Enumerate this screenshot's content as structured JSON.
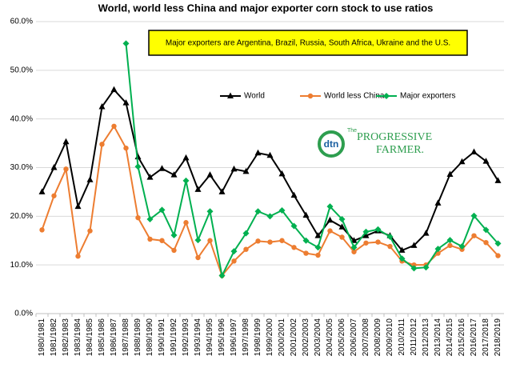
{
  "chart_data": {
    "type": "line",
    "title": "World, world less China and major exporter corn stock to use ratios",
    "annotation": "Major exporters are Argentina, Brazil, Russia, South Africa, Ukraine and the U.S.",
    "logo": {
      "mark": "dtn",
      "prefix": "The",
      "name": "PROGRESSIVE",
      "name2": "FARMER."
    },
    "categories": [
      "1980/1981",
      "1981/1982",
      "1982/1983",
      "1983/1984",
      "1984/1985",
      "1985/1986",
      "1986/1987",
      "1987/1988",
      "1988/1989",
      "1989/1990",
      "1990/1991",
      "1991/1992",
      "1992/1993",
      "1993/1994",
      "1994/1995",
      "1995/1996",
      "1996/1997",
      "1997/1998",
      "1998/1999",
      "1999/2000",
      "2000/2001",
      "2001/2002",
      "2002/2003",
      "2003/2004",
      "2004/2005",
      "2005/2006",
      "2006/2007",
      "2007/2008",
      "2008/2009",
      "2009/2010",
      "2010/2011",
      "2011/2012",
      "2012/2013",
      "2013/2014",
      "2014/2015",
      "2015/2016",
      "2016/2017",
      "2017/2018",
      "2018/2019"
    ],
    "series": [
      {
        "name": "World",
        "color": "#000000",
        "marker": "triangle",
        "values": [
          25,
          30,
          35.3,
          22,
          27.5,
          42.5,
          46,
          43.3,
          32.2,
          28,
          29.8,
          28.5,
          32,
          25.5,
          28.5,
          25,
          29.7,
          29.2,
          33,
          32.5,
          28.7,
          24.3,
          20.2,
          16,
          19.2,
          17.8,
          15,
          16,
          17,
          16,
          13,
          14,
          16.5,
          22.7,
          28.6,
          31.2,
          33.2,
          31.3,
          27.3
        ]
      },
      {
        "name": "World less China",
        "color": "#ed7d31",
        "marker": "circle",
        "values": [
          17.2,
          24.2,
          29.7,
          11.8,
          17,
          34.8,
          38.5,
          34,
          19.7,
          15.3,
          15,
          13,
          18.7,
          11.5,
          15,
          7.8,
          10.8,
          13.2,
          14.9,
          14.7,
          15,
          13.6,
          12.4,
          12,
          17,
          15.7,
          12.7,
          14.5,
          14.7,
          13.8,
          10.8,
          10,
          10,
          12.4,
          14,
          13.2,
          16,
          14.6,
          11.9
        ]
      },
      {
        "name": "Major exporters",
        "color": "#00b050",
        "marker": "diamond",
        "values": [
          null,
          null,
          null,
          null,
          null,
          null,
          null,
          55.5,
          30.2,
          19.4,
          21.3,
          16.1,
          27.3,
          15.1,
          21,
          7.8,
          12.8,
          16.5,
          21,
          20,
          21.2,
          18,
          15,
          13.6,
          22,
          19.4,
          13.6,
          16.8,
          17.3,
          15.8,
          11.3,
          9.3,
          9.5,
          13.3,
          15.1,
          13.8,
          20.1,
          17.2,
          14.4
        ]
      }
    ],
    "ylim": [
      0,
      60
    ],
    "yticks": [
      {
        "value": 0,
        "label": "0.0%"
      },
      {
        "value": 10,
        "label": "10.0%"
      },
      {
        "value": 20,
        "label": "20.0%"
      },
      {
        "value": 30,
        "label": "30.0%"
      },
      {
        "value": 40,
        "label": "40.0%"
      },
      {
        "value": 50,
        "label": "50.0%"
      },
      {
        "value": 60,
        "label": "60.0%"
      }
    ],
    "grid": true
  }
}
